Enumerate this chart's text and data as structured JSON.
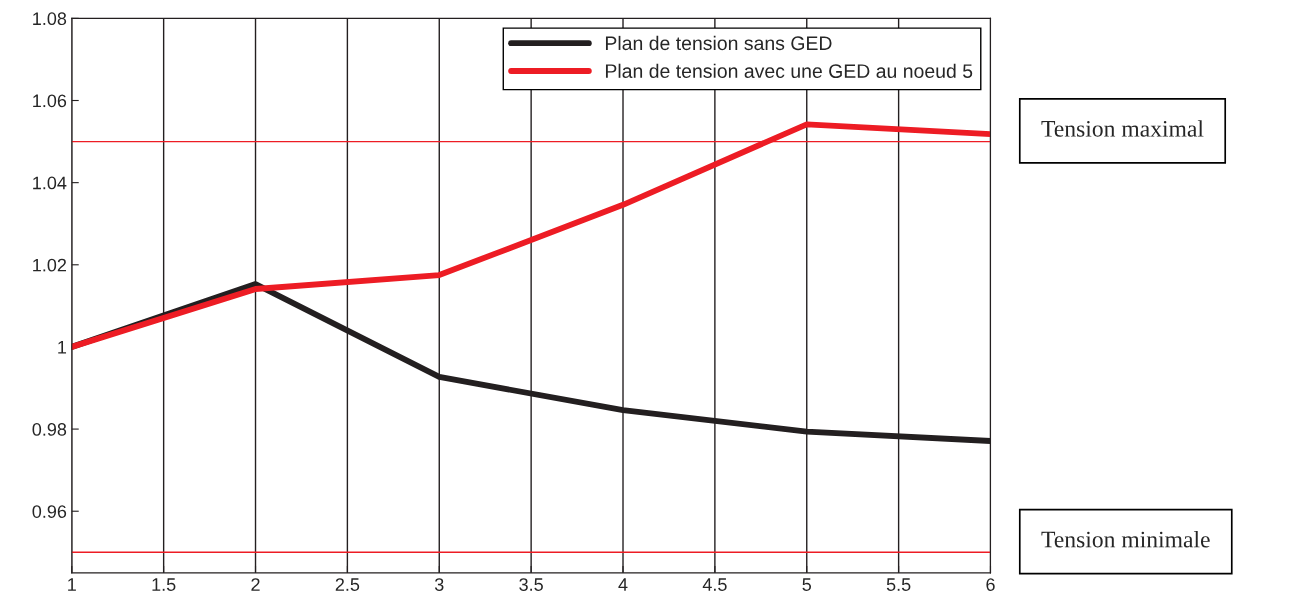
{
  "chart_data": {
    "type": "line",
    "x": [
      1,
      2,
      3,
      4,
      5,
      6
    ],
    "series": [
      {
        "name": "Plan de tension sans GED",
        "color": "#231f20",
        "values": [
          1.0,
          1.0153,
          0.9927,
          0.9846,
          0.9794,
          0.9771
        ]
      },
      {
        "name": "Plan de tension avec une GED au noeud 5",
        "color": "#ed1c24",
        "values": [
          1.0,
          1.0141,
          1.0175,
          1.0346,
          1.0542,
          1.0518
        ]
      }
    ],
    "xlim": [
      1,
      6
    ],
    "xticks": [
      1,
      1.5,
      2,
      2.5,
      3,
      3.5,
      4,
      4.5,
      5,
      5.5,
      6
    ],
    "ylim": [
      0.945,
      1.08
    ],
    "yticks": [
      0.96,
      0.98,
      1,
      1.02,
      1.04,
      1.06,
      1.08
    ],
    "grid": "x",
    "legend": "top right",
    "marker": "none",
    "line_style": "solid",
    "ref_lines": [
      {
        "axis": "y",
        "value": 1.05,
        "label": "Tension maximal",
        "color": "#ed1c24"
      },
      {
        "axis": "y",
        "value": 0.95,
        "label": "Tension minimale",
        "color": "#ed1c24"
      }
    ]
  }
}
